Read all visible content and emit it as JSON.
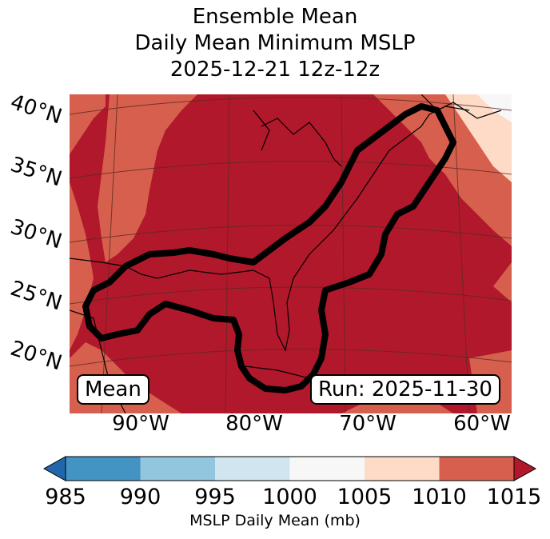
{
  "title": {
    "line1": "Ensemble Mean",
    "line2": "Daily Mean Minimum MSLP",
    "line3": "2025-12-21 12z-12z"
  },
  "map": {
    "lat_labels": [
      "40°N",
      "35°N",
      "30°N",
      "25°N",
      "20°N"
    ],
    "lon_labels": [
      "90°W",
      "80°W",
      "70°W",
      "60°W"
    ],
    "left_box": "Mean",
    "right_box": "Run: 2025-11-30"
  },
  "colorbar": {
    "ticks": [
      "985",
      "990",
      "995",
      "1000",
      "1005",
      "1010",
      "1015"
    ],
    "label": "MSLP Daily Mean (mb)",
    "colors": [
      "#4393c3",
      "#92c5de",
      "#d1e5f0",
      "#f7f7f7",
      "#fddbc7",
      "#d6604d"
    ],
    "under_color": "#2166ac",
    "over_color": "#b2182b"
  }
}
